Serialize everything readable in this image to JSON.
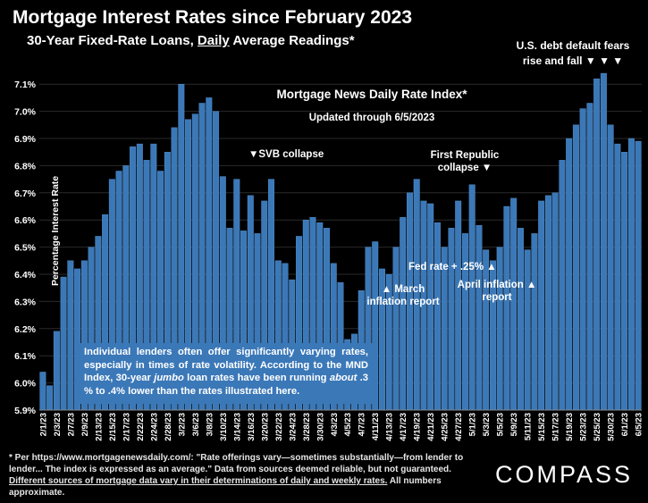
{
  "header": {
    "title": "Mortgage Interest Rates since February 2023",
    "subtitle_pre": "30-Year Fixed-Rate Loans, ",
    "subtitle_u": "Daily",
    "subtitle_post": " Average Readings*"
  },
  "center": {
    "index_title": "Mortgage News Daily Rate Index*",
    "updated": "Updated through 6/5/2023"
  },
  "annotations": {
    "debt_line1": "U.S. debt default fears",
    "debt_line2": "rise and fall",
    "debt_arrows": "▼ ▼ ▼",
    "svb": "▼SVB collapse",
    "first_republic_1": "First Republic",
    "first_republic_2": "collapse ▼",
    "fed_rate": "Fed rate + .25%  ▲",
    "march_1": "▲ March",
    "march_2": "inflation report",
    "april_1": "April inflation  ▲",
    "april_2": "report"
  },
  "note": {
    "part1": "Individual lenders often offer significantly varying rates, especially in times of rate volatility. According to the MND Index, 30-year ",
    "jumbo": "jumbo",
    "part2": " loan rates have been running ",
    "about": "about",
    "part3": " .3 % to .4% lower than the rates illustrated here."
  },
  "footer": {
    "text1": "* Per https://www.mortgagenewsdaily.com/: \"Rate offerings vary—sometimes substantially—from lender to lender... The index is expressed as an average.\" Data from sources deemed reliable, but not guaranteed. ",
    "underlined": "Different sources of mortgage data vary in their determinations of daily and weekly rates.",
    "text2": " All numbers approximate."
  },
  "logo": "COMPASS",
  "colors": {
    "bar": "#3b78b8",
    "bar_edge": "#5a95d1",
    "background": "#000000",
    "grid": "#2a2a2a"
  },
  "chart_data": {
    "type": "bar",
    "ylabel": "Percentage Interest  Rate",
    "ylim": [
      5.9,
      7.15
    ],
    "yticks": [
      "5.9%",
      "6.0%",
      "6.1%",
      "6.2%",
      "6.3%",
      "6.4%",
      "6.5%",
      "6.6%",
      "6.7%",
      "6.8%",
      "6.9%",
      "7.0%",
      "7.1%"
    ],
    "xtick_labels": [
      "2/1/23",
      "2/3/23",
      "2/7/23",
      "2/9/23",
      "2/13/23",
      "2/15/23",
      "2/17/23",
      "2/22/23",
      "2/24/23",
      "2/28/23",
      "3/2/23",
      "3/6/23",
      "3/8/23",
      "3/10/23",
      "3/14/23",
      "3/16/23",
      "3/20/23",
      "3/22/23",
      "3/24/23",
      "3/28/23",
      "3/30/23",
      "4/3/23",
      "4/5/23",
      "4/7/23",
      "4/11/23",
      "4/13/23",
      "4/17/23",
      "4/19/23",
      "4/21/23",
      "4/25/23",
      "4/27/23",
      "5/1/23",
      "5/3/23",
      "5/5/23",
      "5/9/23",
      "5/11/23",
      "5/15/23",
      "5/17/23",
      "5/19/23",
      "5/23/23",
      "5/25/23",
      "5/30/23",
      "6/1/23",
      "6/5/23"
    ],
    "values": [
      6.04,
      5.99,
      6.19,
      6.39,
      6.45,
      6.42,
      6.45,
      6.5,
      6.54,
      6.62,
      6.75,
      6.78,
      6.8,
      6.87,
      6.88,
      6.82,
      6.88,
      6.78,
      6.85,
      6.94,
      7.1,
      6.97,
      6.99,
      7.03,
      7.05,
      7.0,
      6.76,
      6.57,
      6.75,
      6.56,
      6.69,
      6.55,
      6.67,
      6.75,
      6.45,
      6.44,
      6.38,
      6.54,
      6.6,
      6.61,
      6.59,
      6.57,
      6.44,
      6.37,
      6.16,
      6.18,
      6.34,
      6.5,
      6.52,
      6.42,
      6.4,
      6.5,
      6.61,
      6.7,
      6.75,
      6.67,
      6.66,
      6.59,
      6.5,
      6.57,
      6.67,
      6.55,
      6.73,
      6.58,
      6.49,
      6.45,
      6.5,
      6.65,
      6.68,
      6.57,
      6.49,
      6.55,
      6.67,
      6.69,
      6.7,
      6.82,
      6.9,
      6.95,
      7.01,
      7.03,
      7.12,
      7.14,
      6.95,
      6.88,
      6.85,
      6.9,
      6.89
    ],
    "grid": true
  }
}
